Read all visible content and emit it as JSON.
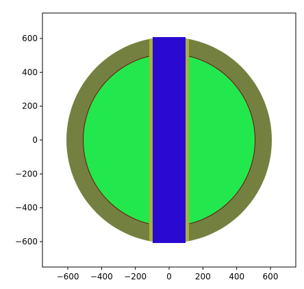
{
  "chart_data": {
    "type": "image",
    "xlim": [
      -750,
      750
    ],
    "ylim": [
      -750,
      750
    ],
    "xticks": [
      {
        "value": -600,
        "label": "−600"
      },
      {
        "value": -400,
        "label": "−400"
      },
      {
        "value": -200,
        "label": "−200"
      },
      0,
      200,
      400,
      600
    ],
    "yticks": [
      {
        "value": -600,
        "label": "−600"
      },
      {
        "value": -400,
        "label": "−400"
      },
      {
        "value": -200,
        "label": "−200"
      },
      0,
      200,
      400,
      600
    ]
  }
}
